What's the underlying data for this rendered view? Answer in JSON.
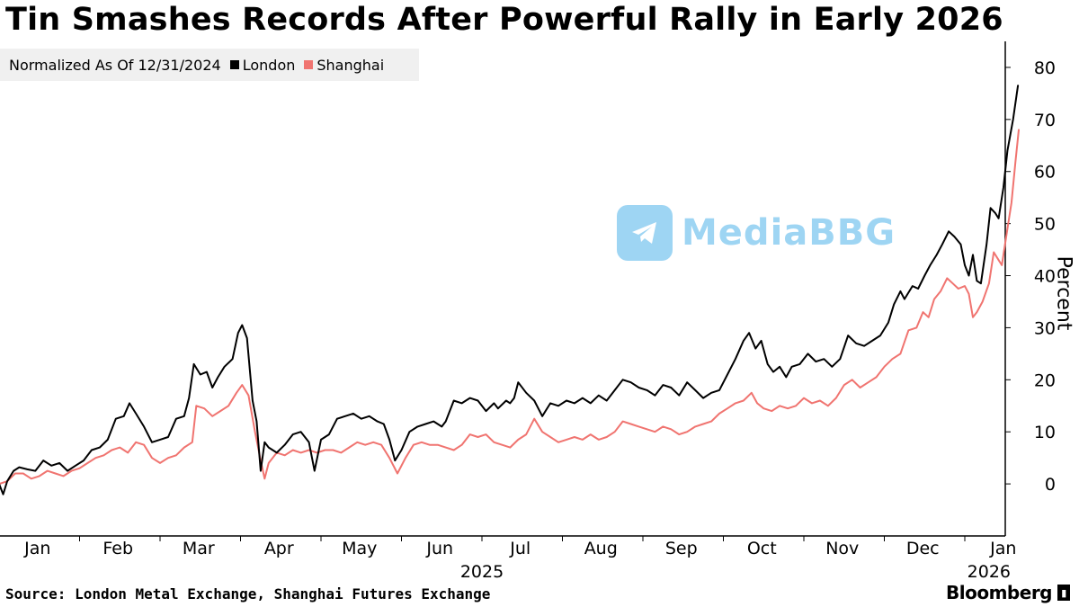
{
  "title": "Tin Smashes Records After Powerful Rally in Early 2026",
  "source": "Source: London Metal Exchange, Shanghai Futures Exchange",
  "brand": "Bloomberg",
  "watermark": "MediaBBG",
  "colors": {
    "london": "#000000",
    "shanghai": "#f07470",
    "legend_bg": "#f0f0f0",
    "watermark": "#2aa3e6"
  },
  "chart_data": {
    "type": "line",
    "title": "Tin Smashes Records After Powerful Rally in Early 2026",
    "note": "Normalized As Of 12/31/2024",
    "ylabel": "Percent",
    "xlabel": "",
    "ylim": [
      -10,
      85
    ],
    "yticks": [
      0,
      10,
      20,
      30,
      40,
      50,
      60,
      70,
      80
    ],
    "xlim": [
      0,
      12.15
    ],
    "xticks": [
      {
        "label": "Jan",
        "t": 0.5
      },
      {
        "label": "Feb",
        "t": 1.5
      },
      {
        "label": "Mar",
        "t": 2.5
      },
      {
        "label": "Apr",
        "t": 3.5
      },
      {
        "label": "May",
        "t": 4.5
      },
      {
        "label": "Jun",
        "t": 5.5
      },
      {
        "label": "Jul",
        "t": 6.5
      },
      {
        "label": "Aug",
        "t": 7.5
      },
      {
        "label": "Sep",
        "t": 8.5
      },
      {
        "label": "Oct",
        "t": 9.5
      },
      {
        "label": "Nov",
        "t": 10.5
      },
      {
        "label": "Dec",
        "t": 11.5
      },
      {
        "label": "Jan",
        "t": 12.5
      }
    ],
    "year_labels": [
      {
        "label": "2025",
        "t": 6.0
      },
      {
        "label": "2026",
        "t": 12.3
      }
    ],
    "grid": false,
    "series": [
      {
        "name": "London",
        "color": "#000000",
        "points": [
          [
            0.0,
            0.0
          ],
          [
            0.05,
            -2.0
          ],
          [
            0.1,
            0.5
          ],
          [
            0.18,
            2.5
          ],
          [
            0.25,
            3.2
          ],
          [
            0.35,
            2.8
          ],
          [
            0.45,
            2.5
          ],
          [
            0.55,
            4.5
          ],
          [
            0.65,
            3.5
          ],
          [
            0.75,
            4.0
          ],
          [
            0.85,
            2.5
          ],
          [
            0.95,
            3.5
          ],
          [
            1.05,
            4.5
          ],
          [
            1.15,
            6.5
          ],
          [
            1.25,
            7.0
          ],
          [
            1.35,
            8.5
          ],
          [
            1.45,
            12.5
          ],
          [
            1.55,
            13.0
          ],
          [
            1.62,
            15.5
          ],
          [
            1.7,
            13.5
          ],
          [
            1.8,
            11.0
          ],
          [
            1.9,
            8.0
          ],
          [
            2.0,
            8.5
          ],
          [
            2.1,
            9.0
          ],
          [
            2.2,
            12.5
          ],
          [
            2.3,
            13.0
          ],
          [
            2.36,
            16.5
          ],
          [
            2.42,
            23.0
          ],
          [
            2.5,
            21.0
          ],
          [
            2.58,
            21.5
          ],
          [
            2.65,
            18.5
          ],
          [
            2.72,
            20.5
          ],
          [
            2.8,
            22.5
          ],
          [
            2.9,
            24.0
          ],
          [
            2.97,
            29.0
          ],
          [
            3.02,
            30.5
          ],
          [
            3.08,
            28.0
          ],
          [
            3.15,
            16.0
          ],
          [
            3.2,
            12.0
          ],
          [
            3.25,
            2.5
          ],
          [
            3.3,
            8.0
          ],
          [
            3.35,
            7.0
          ],
          [
            3.45,
            6.0
          ],
          [
            3.55,
            7.5
          ],
          [
            3.65,
            9.5
          ],
          [
            3.75,
            10.0
          ],
          [
            3.85,
            8.0
          ],
          [
            3.92,
            2.5
          ],
          [
            4.0,
            8.5
          ],
          [
            4.1,
            9.5
          ],
          [
            4.2,
            12.5
          ],
          [
            4.3,
            13.0
          ],
          [
            4.4,
            13.5
          ],
          [
            4.5,
            12.5
          ],
          [
            4.6,
            13.0
          ],
          [
            4.7,
            12.0
          ],
          [
            4.78,
            11.5
          ],
          [
            4.85,
            8.5
          ],
          [
            4.92,
            4.5
          ],
          [
            5.0,
            6.5
          ],
          [
            5.1,
            10.0
          ],
          [
            5.2,
            11.0
          ],
          [
            5.3,
            11.5
          ],
          [
            5.4,
            12.0
          ],
          [
            5.5,
            11.0
          ],
          [
            5.55,
            12.0
          ],
          [
            5.65,
            16.0
          ],
          [
            5.75,
            15.5
          ],
          [
            5.85,
            16.5
          ],
          [
            5.95,
            16.0
          ],
          [
            6.05,
            14.0
          ],
          [
            6.15,
            15.5
          ],
          [
            6.2,
            14.5
          ],
          [
            6.3,
            16.0
          ],
          [
            6.35,
            15.5
          ],
          [
            6.4,
            16.5
          ],
          [
            6.45,
            19.5
          ],
          [
            6.55,
            17.5
          ],
          [
            6.65,
            16.0
          ],
          [
            6.75,
            13.0
          ],
          [
            6.85,
            15.5
          ],
          [
            6.95,
            15.0
          ],
          [
            7.05,
            16.0
          ],
          [
            7.15,
            15.5
          ],
          [
            7.25,
            16.5
          ],
          [
            7.35,
            15.5
          ],
          [
            7.45,
            17.0
          ],
          [
            7.55,
            16.0
          ],
          [
            7.65,
            18.0
          ],
          [
            7.75,
            20.0
          ],
          [
            7.85,
            19.5
          ],
          [
            7.95,
            18.5
          ],
          [
            8.05,
            18.0
          ],
          [
            8.15,
            17.0
          ],
          [
            8.25,
            19.0
          ],
          [
            8.35,
            18.5
          ],
          [
            8.45,
            17.0
          ],
          [
            8.55,
            19.5
          ],
          [
            8.65,
            18.0
          ],
          [
            8.75,
            16.5
          ],
          [
            8.85,
            17.5
          ],
          [
            8.95,
            18.0
          ],
          [
            9.05,
            21.0
          ],
          [
            9.15,
            24.0
          ],
          [
            9.25,
            27.5
          ],
          [
            9.32,
            29.0
          ],
          [
            9.4,
            26.0
          ],
          [
            9.47,
            27.5
          ],
          [
            9.55,
            23.0
          ],
          [
            9.62,
            21.5
          ],
          [
            9.7,
            22.5
          ],
          [
            9.78,
            20.5
          ],
          [
            9.85,
            22.5
          ],
          [
            9.95,
            23.0
          ],
          [
            10.05,
            25.0
          ],
          [
            10.15,
            23.5
          ],
          [
            10.25,
            24.0
          ],
          [
            10.35,
            22.5
          ],
          [
            10.45,
            24.0
          ],
          [
            10.55,
            28.5
          ],
          [
            10.65,
            27.0
          ],
          [
            10.75,
            26.5
          ],
          [
            10.85,
            27.5
          ],
          [
            10.95,
            28.5
          ],
          [
            11.05,
            31.0
          ],
          [
            11.12,
            34.5
          ],
          [
            11.2,
            37.0
          ],
          [
            11.25,
            35.5
          ],
          [
            11.35,
            38.0
          ],
          [
            11.42,
            37.5
          ],
          [
            11.5,
            40.0
          ],
          [
            11.57,
            42.0
          ],
          [
            11.65,
            44.0
          ],
          [
            11.72,
            46.0
          ],
          [
            11.8,
            48.5
          ],
          [
            11.87,
            47.5
          ],
          [
            11.95,
            46.0
          ],
          [
            12.0,
            42.0
          ],
          [
            12.05,
            40.0
          ],
          [
            12.1,
            44.0
          ],
          [
            12.15,
            39.0
          ],
          [
            12.2,
            38.5
          ],
          [
            12.27,
            46.0
          ],
          [
            12.32,
            53.0
          ],
          [
            12.38,
            52.0
          ],
          [
            12.42,
            51.0
          ],
          [
            12.48,
            57.0
          ],
          [
            12.53,
            64.0
          ],
          [
            12.6,
            70.0
          ],
          [
            12.66,
            76.5
          ]
        ]
      },
      {
        "name": "Shanghai",
        "color": "#f07470",
        "points": [
          [
            0.0,
            0.0
          ],
          [
            0.1,
            0.5
          ],
          [
            0.2,
            2.0
          ],
          [
            0.3,
            2.0
          ],
          [
            0.4,
            1.0
          ],
          [
            0.5,
            1.5
          ],
          [
            0.6,
            2.5
          ],
          [
            0.7,
            2.0
          ],
          [
            0.8,
            1.5
          ],
          [
            0.9,
            2.5
          ],
          [
            1.0,
            3.0
          ],
          [
            1.1,
            4.0
          ],
          [
            1.2,
            5.0
          ],
          [
            1.3,
            5.5
          ],
          [
            1.4,
            6.5
          ],
          [
            1.5,
            7.0
          ],
          [
            1.6,
            6.0
          ],
          [
            1.7,
            8.0
          ],
          [
            1.8,
            7.5
          ],
          [
            1.9,
            5.0
          ],
          [
            2.0,
            4.0
          ],
          [
            2.1,
            5.0
          ],
          [
            2.2,
            5.5
          ],
          [
            2.3,
            7.0
          ],
          [
            2.4,
            8.0
          ],
          [
            2.45,
            15.0
          ],
          [
            2.55,
            14.5
          ],
          [
            2.65,
            13.0
          ],
          [
            2.75,
            14.0
          ],
          [
            2.85,
            15.0
          ],
          [
            2.95,
            17.5
          ],
          [
            3.02,
            19.0
          ],
          [
            3.1,
            17.0
          ],
          [
            3.18,
            10.0
          ],
          [
            3.25,
            4.5
          ],
          [
            3.3,
            1.0
          ],
          [
            3.35,
            4.0
          ],
          [
            3.45,
            6.0
          ],
          [
            3.55,
            5.5
          ],
          [
            3.65,
            6.5
          ],
          [
            3.75,
            6.0
          ],
          [
            3.85,
            6.5
          ],
          [
            3.95,
            6.0
          ],
          [
            4.05,
            6.5
          ],
          [
            4.15,
            6.5
          ],
          [
            4.25,
            6.0
          ],
          [
            4.35,
            7.0
          ],
          [
            4.45,
            8.0
          ],
          [
            4.55,
            7.5
          ],
          [
            4.65,
            8.0
          ],
          [
            4.75,
            7.5
          ],
          [
            4.85,
            5.0
          ],
          [
            4.95,
            2.0
          ],
          [
            5.05,
            5.0
          ],
          [
            5.15,
            7.5
          ],
          [
            5.25,
            8.0
          ],
          [
            5.35,
            7.5
          ],
          [
            5.45,
            7.5
          ],
          [
            5.55,
            7.0
          ],
          [
            5.65,
            6.5
          ],
          [
            5.75,
            7.5
          ],
          [
            5.85,
            9.5
          ],
          [
            5.95,
            9.0
          ],
          [
            6.05,
            9.5
          ],
          [
            6.15,
            8.0
          ],
          [
            6.25,
            7.5
          ],
          [
            6.35,
            7.0
          ],
          [
            6.45,
            8.5
          ],
          [
            6.55,
            9.5
          ],
          [
            6.65,
            12.5
          ],
          [
            6.75,
            10.0
          ],
          [
            6.85,
            9.0
          ],
          [
            6.95,
            8.0
          ],
          [
            7.05,
            8.5
          ],
          [
            7.15,
            9.0
          ],
          [
            7.25,
            8.5
          ],
          [
            7.35,
            9.5
          ],
          [
            7.45,
            8.5
          ],
          [
            7.55,
            9.0
          ],
          [
            7.65,
            10.0
          ],
          [
            7.75,
            12.0
          ],
          [
            7.85,
            11.5
          ],
          [
            7.95,
            11.0
          ],
          [
            8.05,
            10.5
          ],
          [
            8.15,
            10.0
          ],
          [
            8.25,
            11.0
          ],
          [
            8.35,
            10.5
          ],
          [
            8.45,
            9.5
          ],
          [
            8.55,
            10.0
          ],
          [
            8.65,
            11.0
          ],
          [
            8.75,
            11.5
          ],
          [
            8.85,
            12.0
          ],
          [
            8.95,
            13.5
          ],
          [
            9.05,
            14.5
          ],
          [
            9.15,
            15.5
          ],
          [
            9.25,
            16.0
          ],
          [
            9.35,
            17.5
          ],
          [
            9.42,
            15.5
          ],
          [
            9.5,
            14.5
          ],
          [
            9.6,
            14.0
          ],
          [
            9.7,
            15.0
          ],
          [
            9.8,
            14.5
          ],
          [
            9.9,
            15.0
          ],
          [
            10.0,
            16.5
          ],
          [
            10.1,
            15.5
          ],
          [
            10.2,
            16.0
          ],
          [
            10.3,
            15.0
          ],
          [
            10.4,
            16.5
          ],
          [
            10.5,
            19.0
          ],
          [
            10.6,
            20.0
          ],
          [
            10.7,
            18.5
          ],
          [
            10.8,
            19.5
          ],
          [
            10.9,
            20.5
          ],
          [
            11.0,
            22.5
          ],
          [
            11.1,
            24.0
          ],
          [
            11.2,
            25.0
          ],
          [
            11.3,
            29.5
          ],
          [
            11.4,
            30.0
          ],
          [
            11.48,
            33.0
          ],
          [
            11.55,
            32.0
          ],
          [
            11.62,
            35.5
          ],
          [
            11.7,
            37.0
          ],
          [
            11.78,
            39.5
          ],
          [
            11.85,
            38.5
          ],
          [
            11.92,
            37.5
          ],
          [
            12.0,
            38.0
          ],
          [
            12.05,
            36.5
          ],
          [
            12.1,
            32.0
          ],
          [
            12.15,
            33.0
          ],
          [
            12.22,
            35.0
          ],
          [
            12.3,
            38.5
          ],
          [
            12.36,
            44.5
          ],
          [
            12.42,
            43.0
          ],
          [
            12.46,
            42.0
          ],
          [
            12.52,
            48.0
          ],
          [
            12.58,
            54.0
          ],
          [
            12.63,
            62.0
          ],
          [
            12.67,
            68.0
          ]
        ]
      }
    ]
  }
}
